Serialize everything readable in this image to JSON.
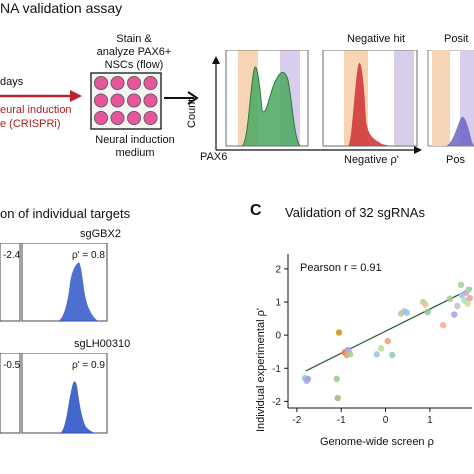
{
  "panel_a": {
    "title_fragment": "NA validation assay",
    "days_label": "days",
    "induction_line1": "eural induction",
    "induction_line2": "e (CRISPRi)",
    "stain_line1": "Stain &",
    "stain_line2": "analyze PAX6+",
    "stain_line3": "NSCs (flow)",
    "medium_line1": "Neural induction",
    "medium_line2": "medium",
    "axis_y": "Count",
    "axis_x": "PAX6",
    "negative_hit_title": "Negative hit",
    "positive_title_fragment": "Posit",
    "negative_rho": "Negative ρ'",
    "positive_rho_fragment": "Pos",
    "colors": {
      "arrow_red": "#c0222c",
      "well_pink": "#e7559a",
      "orange_band": "#f6d4b4",
      "purple_band": "#d9cdec",
      "green": "#4aa860",
      "red_peak": "#d23a3a",
      "blue_peak": "#6b63c4"
    }
  },
  "panel_b": {
    "title_fragment": "on of individual targets",
    "plots": [
      {
        "name": "sgGBX2",
        "rho_label": "ρ' = 0.8",
        "left_value": "-2.4"
      },
      {
        "name": "sgLH00310",
        "rho_label": "ρ' = 0.9",
        "left_value": "-0.5"
      }
    ],
    "peak_color": "#3056c8"
  },
  "panel_c": {
    "letter": "C",
    "title": "Validation of 32 sgRNAs",
    "pearson": "Pearson r = 0.91",
    "ylabel": "Individual experimental ρ'",
    "xlabel": "Genome-wide screen ρ",
    "x_ticks": [
      "-2",
      "-1",
      "0",
      "1"
    ],
    "y_ticks": [
      "-2",
      "-1",
      "0",
      "1",
      "2"
    ]
  },
  "chart_data": {
    "type": "scatter",
    "title": "Validation of 32 sgRNAs",
    "xlabel": "Genome-wide screen ρ",
    "ylabel": "Individual experimental ρ'",
    "xlim": [
      -2.2,
      1.95
    ],
    "ylim": [
      -2.2,
      2.45
    ],
    "annotation": "Pearson r = 0.91",
    "fit_line": {
      "x": [
        -1.8,
        1.95
      ],
      "y": [
        -1.08,
        1.42
      ]
    },
    "points": [
      {
        "x": -1.82,
        "y": -1.3,
        "color": "#8ad8d0"
      },
      {
        "x": -1.78,
        "y": -1.38,
        "color": "#c6a2e6"
      },
      {
        "x": -1.75,
        "y": -1.32,
        "color": "#9aa4ea"
      },
      {
        "x": -1.05,
        "y": 0.08,
        "color": "#c89a22"
      },
      {
        "x": -1.1,
        "y": -1.32,
        "color": "#9ad08a"
      },
      {
        "x": -1.08,
        "y": -1.9,
        "color": "#a0c080"
      },
      {
        "x": -0.92,
        "y": -0.52,
        "color": "#e8804a"
      },
      {
        "x": -0.88,
        "y": -0.6,
        "color": "#f09a6a"
      },
      {
        "x": -0.85,
        "y": -0.45,
        "color": "#8ab0e6"
      },
      {
        "x": -0.83,
        "y": -0.5,
        "color": "#c8a0e4"
      },
      {
        "x": -0.8,
        "y": -0.58,
        "color": "#a6d28a"
      },
      {
        "x": -0.2,
        "y": -0.58,
        "color": "#9ec8ea"
      },
      {
        "x": -0.1,
        "y": -0.4,
        "color": "#b8e09a"
      },
      {
        "x": 0.05,
        "y": -0.18,
        "color": "#f0a080"
      },
      {
        "x": 0.15,
        "y": -0.6,
        "color": "#8fd0c8"
      },
      {
        "x": 0.35,
        "y": 0.65,
        "color": "#a6d890"
      },
      {
        "x": 0.42,
        "y": 0.72,
        "color": "#d0a8ea"
      },
      {
        "x": 0.48,
        "y": 0.68,
        "color": "#8ecbe2"
      },
      {
        "x": 0.85,
        "y": 1.0,
        "color": "#b0d890"
      },
      {
        "x": 0.9,
        "y": 0.92,
        "color": "#e8c890"
      },
      {
        "x": 0.95,
        "y": 0.7,
        "color": "#8fc8a0"
      },
      {
        "x": 1.3,
        "y": 0.3,
        "color": "#f0b090"
      },
      {
        "x": 1.45,
        "y": 1.1,
        "color": "#9cd08a"
      },
      {
        "x": 1.55,
        "y": 0.62,
        "color": "#b0a0ea"
      },
      {
        "x": 1.62,
        "y": 0.88,
        "color": "#c4c4c4"
      },
      {
        "x": 1.7,
        "y": 1.52,
        "color": "#9ed89a"
      },
      {
        "x": 1.72,
        "y": 1.2,
        "color": "#a0c8ec"
      },
      {
        "x": 1.78,
        "y": 1.05,
        "color": "#a8e0c0"
      },
      {
        "x": 1.82,
        "y": 1.28,
        "color": "#e0a0d0"
      },
      {
        "x": 1.85,
        "y": 0.95,
        "color": "#c8e098"
      },
      {
        "x": 1.88,
        "y": 1.38,
        "color": "#9ad6a8"
      },
      {
        "x": 1.9,
        "y": 1.12,
        "color": "#f0a0a0"
      }
    ]
  }
}
